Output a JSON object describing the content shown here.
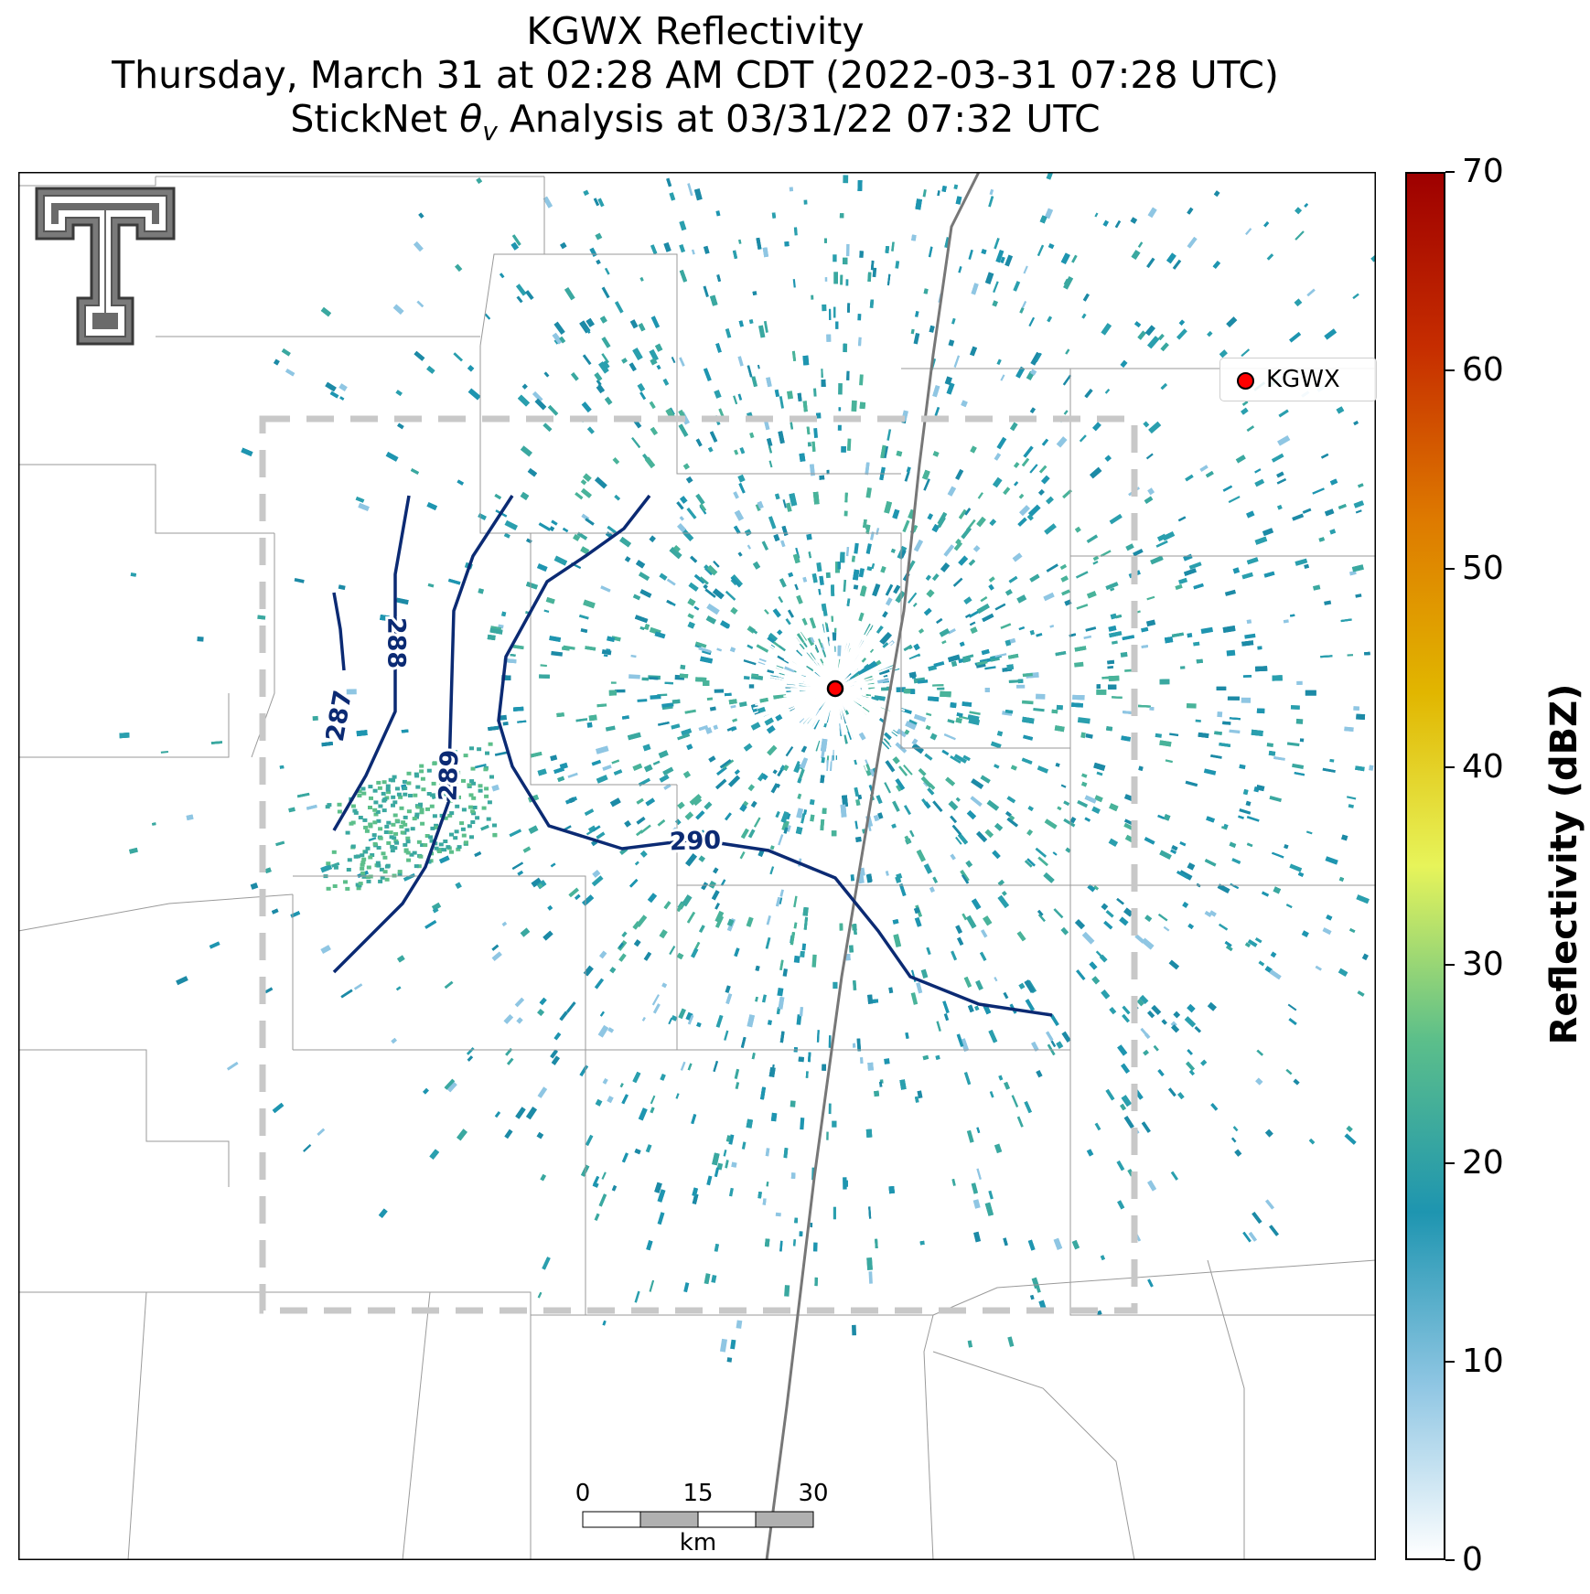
{
  "title": {
    "line1": "KGWX Reflectivity",
    "line2": "Thursday, March 31 at 02:28 AM CDT (2022-03-31 07:28 UTC)",
    "line3_prefix": "StickNet ",
    "line3_symbol": "θ",
    "line3_subscript": "v",
    "line3_suffix": " Analysis at 03/31/22 07:32 UTC"
  },
  "legend": {
    "label": "KGWX",
    "marker_color": "#ff0000"
  },
  "contours": [
    {
      "label": "287"
    },
    {
      "label": "288"
    },
    {
      "label": "289"
    },
    {
      "label": "290"
    }
  ],
  "contour_color": "#0b2a73",
  "colorbar": {
    "title": "Reflectivity (dBZ)",
    "ticks": [
      "0",
      "10",
      "20",
      "30",
      "40",
      "50",
      "60",
      "70"
    ],
    "min": 0,
    "max": 70,
    "colors": [
      "#ffffff",
      "#8fc6e3",
      "#1e95b0",
      "#5cbf8a",
      "#e7f45a",
      "#e1b600",
      "#de7a00",
      "#c62d00",
      "#9e0000"
    ]
  },
  "scale_bar": {
    "ticks": [
      "0",
      "15",
      "30"
    ],
    "unit": "km"
  },
  "logo": {
    "name": "texas-tech-double-t-logo"
  }
}
